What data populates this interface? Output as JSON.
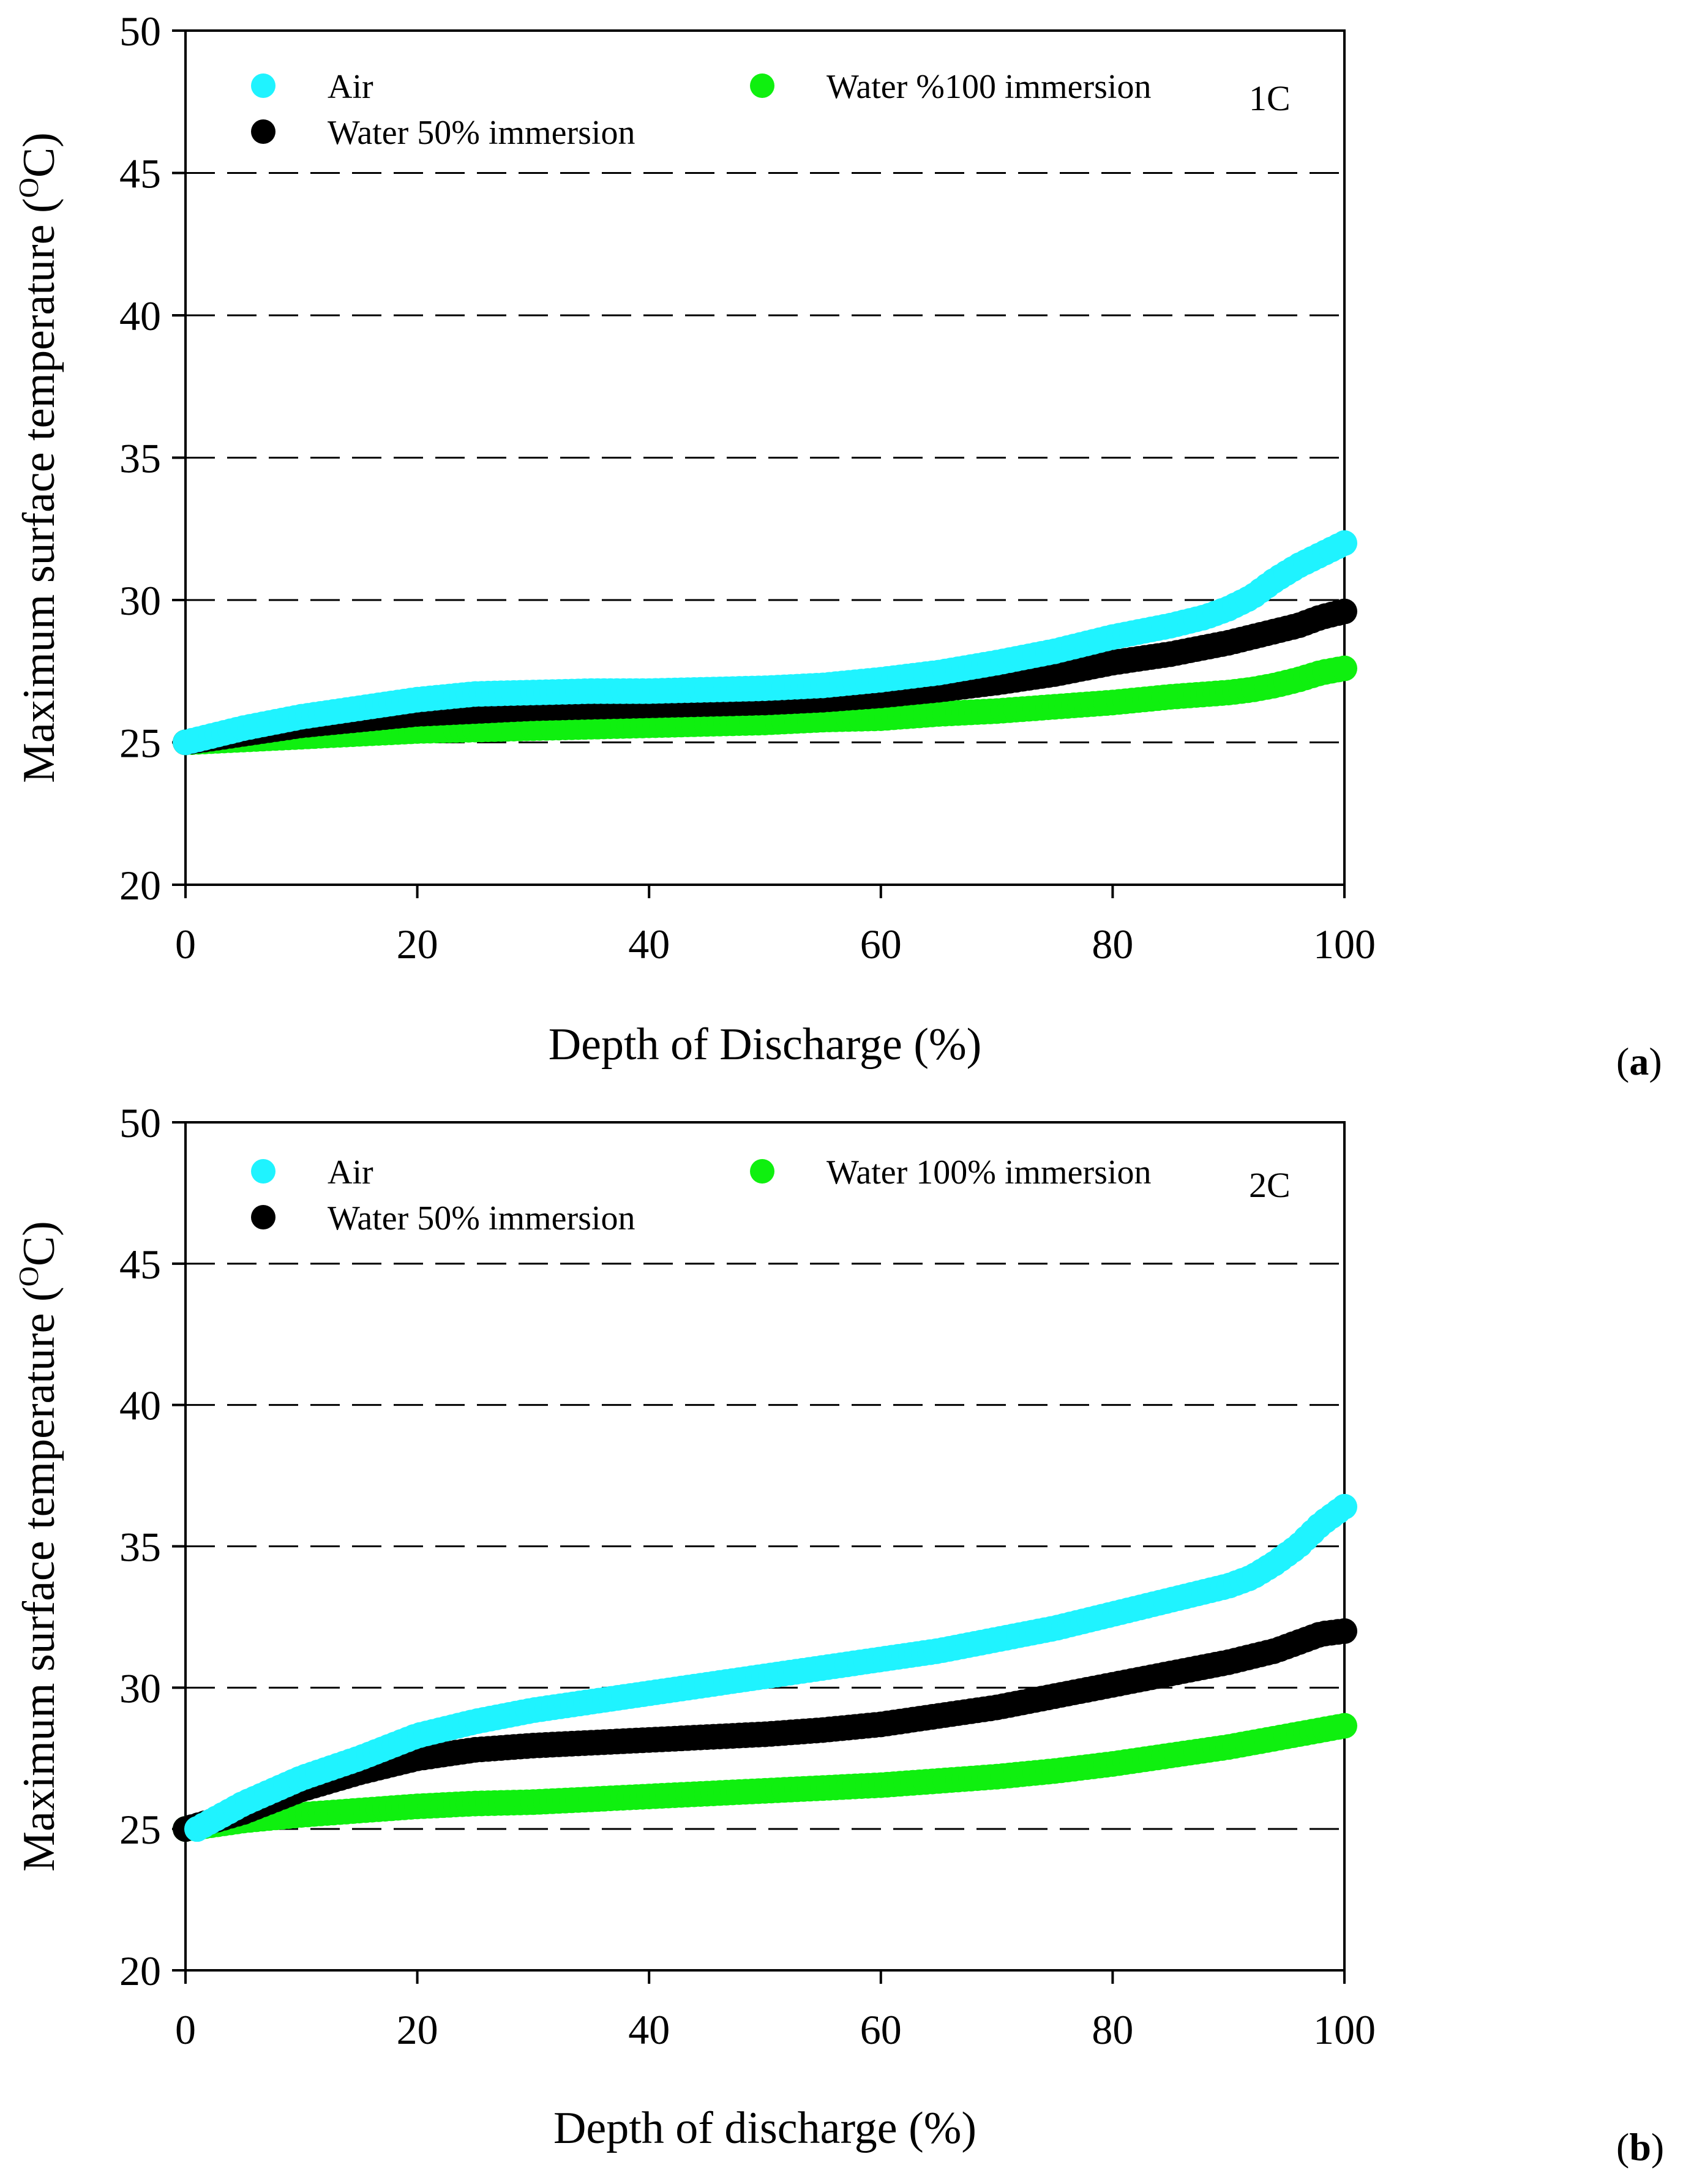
{
  "figure_labels": [
    "(a)",
    "(b)"
  ],
  "colors": {
    "air": "#1ff3ff",
    "water50": "#000000",
    "water100": "#0ff00f"
  },
  "chart_data": [
    {
      "type": "scatter",
      "panel_label": "(a)",
      "panel_letter": "a",
      "rate_label": "1C",
      "xlabel": "Depth of Discharge (%)",
      "ylabel": "Maximum surface temperature (",
      "ylabel_sup": "O",
      "ylabel_end": "C)",
      "xlim": [
        0,
        100
      ],
      "ylim": [
        20,
        50
      ],
      "xticks": [
        "0",
        "20",
        "40",
        "60",
        "80",
        "100"
      ],
      "yticks": [
        "20",
        "25",
        "30",
        "35",
        "40",
        "45",
        "50"
      ],
      "grid": "dashed horizontal lines at 25, 30, 35, 40, 45",
      "series": [
        {
          "key": "air",
          "name": "Air",
          "x": [
            0,
            5,
            10,
            15,
            20,
            25,
            30,
            35,
            40,
            45,
            50,
            55,
            60,
            65,
            70,
            75,
            80,
            85,
            88,
            90,
            92,
            94,
            96,
            98,
            100
          ],
          "y": [
            25.0,
            25.5,
            25.9,
            26.2,
            26.5,
            26.7,
            26.75,
            26.8,
            26.8,
            26.85,
            26.9,
            27.0,
            27.2,
            27.45,
            27.8,
            28.2,
            28.7,
            29.1,
            29.4,
            29.7,
            30.1,
            30.7,
            31.2,
            31.6,
            32.0
          ]
        },
        {
          "key": "water50",
          "name": "Water 50% immersion",
          "x": [
            0,
            5,
            10,
            15,
            20,
            25,
            30,
            35,
            40,
            45,
            50,
            55,
            60,
            65,
            70,
            75,
            80,
            85,
            90,
            92,
            94,
            96,
            98,
            100
          ],
          "y": [
            25.0,
            25.3,
            25.6,
            25.8,
            26.0,
            26.1,
            26.2,
            26.25,
            26.3,
            26.35,
            26.4,
            26.5,
            26.65,
            26.85,
            27.1,
            27.4,
            27.8,
            28.1,
            28.5,
            28.7,
            28.9,
            29.1,
            29.4,
            29.6
          ]
        },
        {
          "key": "water100",
          "name": "Water %100 immersion",
          "x": [
            0,
            5,
            10,
            15,
            20,
            25,
            30,
            35,
            40,
            45,
            50,
            55,
            60,
            65,
            70,
            75,
            80,
            85,
            90,
            92,
            94,
            96,
            98,
            100
          ],
          "y": [
            25.0,
            25.1,
            25.2,
            25.3,
            25.4,
            25.45,
            25.5,
            25.55,
            25.6,
            25.65,
            25.7,
            25.8,
            25.85,
            26.0,
            26.1,
            26.25,
            26.4,
            26.6,
            26.75,
            26.85,
            27.0,
            27.2,
            27.45,
            27.6
          ]
        }
      ]
    },
    {
      "type": "scatter",
      "panel_label": "(b)",
      "panel_letter": "b",
      "rate_label": "2C",
      "xlabel": "Depth of discharge (%)",
      "ylabel": "Maximum surface temperature (",
      "ylabel_sup": "O",
      "ylabel_end": "C)",
      "xlim": [
        0,
        100
      ],
      "ylim": [
        20,
        50
      ],
      "xticks": [
        "0",
        "20",
        "40",
        "60",
        "80",
        "100"
      ],
      "yticks": [
        "20",
        "25",
        "30",
        "35",
        "40",
        "45",
        "50"
      ],
      "grid": "dashed horizontal lines at 25, 30, 35, 40, 45",
      "series": [
        {
          "key": "air",
          "name": "Air",
          "x": [
            1,
            5,
            10,
            15,
            20,
            25,
            30,
            35,
            40,
            45,
            50,
            55,
            60,
            65,
            70,
            75,
            80,
            85,
            90,
            92,
            94,
            96,
            98,
            100
          ],
          "y": [
            25.0,
            25.9,
            26.8,
            27.5,
            28.3,
            28.8,
            29.2,
            29.5,
            29.8,
            30.1,
            30.4,
            30.7,
            31.0,
            31.3,
            31.7,
            32.1,
            32.6,
            33.1,
            33.6,
            33.9,
            34.4,
            35.0,
            35.8,
            36.4
          ]
        },
        {
          "key": "water50",
          "name": "Water 50% immersion",
          "x": [
            0,
            5,
            10,
            15,
            20,
            25,
            30,
            35,
            40,
            45,
            50,
            55,
            60,
            65,
            70,
            75,
            80,
            85,
            90,
            92,
            94,
            96,
            98,
            100
          ],
          "y": [
            25.0,
            25.6,
            26.4,
            27.0,
            27.5,
            27.8,
            27.95,
            28.05,
            28.15,
            28.25,
            28.35,
            28.5,
            28.7,
            29.0,
            29.3,
            29.7,
            30.1,
            30.5,
            30.9,
            31.1,
            31.3,
            31.6,
            31.9,
            32.0
          ]
        },
        {
          "key": "water100",
          "name": "Water 100% immersion",
          "x": [
            0,
            5,
            10,
            15,
            20,
            25,
            30,
            35,
            40,
            45,
            50,
            55,
            60,
            65,
            70,
            75,
            80,
            85,
            90,
            92,
            94,
            96,
            98,
            100
          ],
          "y": [
            25.0,
            25.3,
            25.5,
            25.65,
            25.8,
            25.9,
            25.95,
            26.05,
            26.15,
            26.25,
            26.35,
            26.45,
            26.55,
            26.7,
            26.85,
            27.05,
            27.3,
            27.6,
            27.9,
            28.05,
            28.2,
            28.35,
            28.5,
            28.65
          ]
        }
      ]
    }
  ]
}
